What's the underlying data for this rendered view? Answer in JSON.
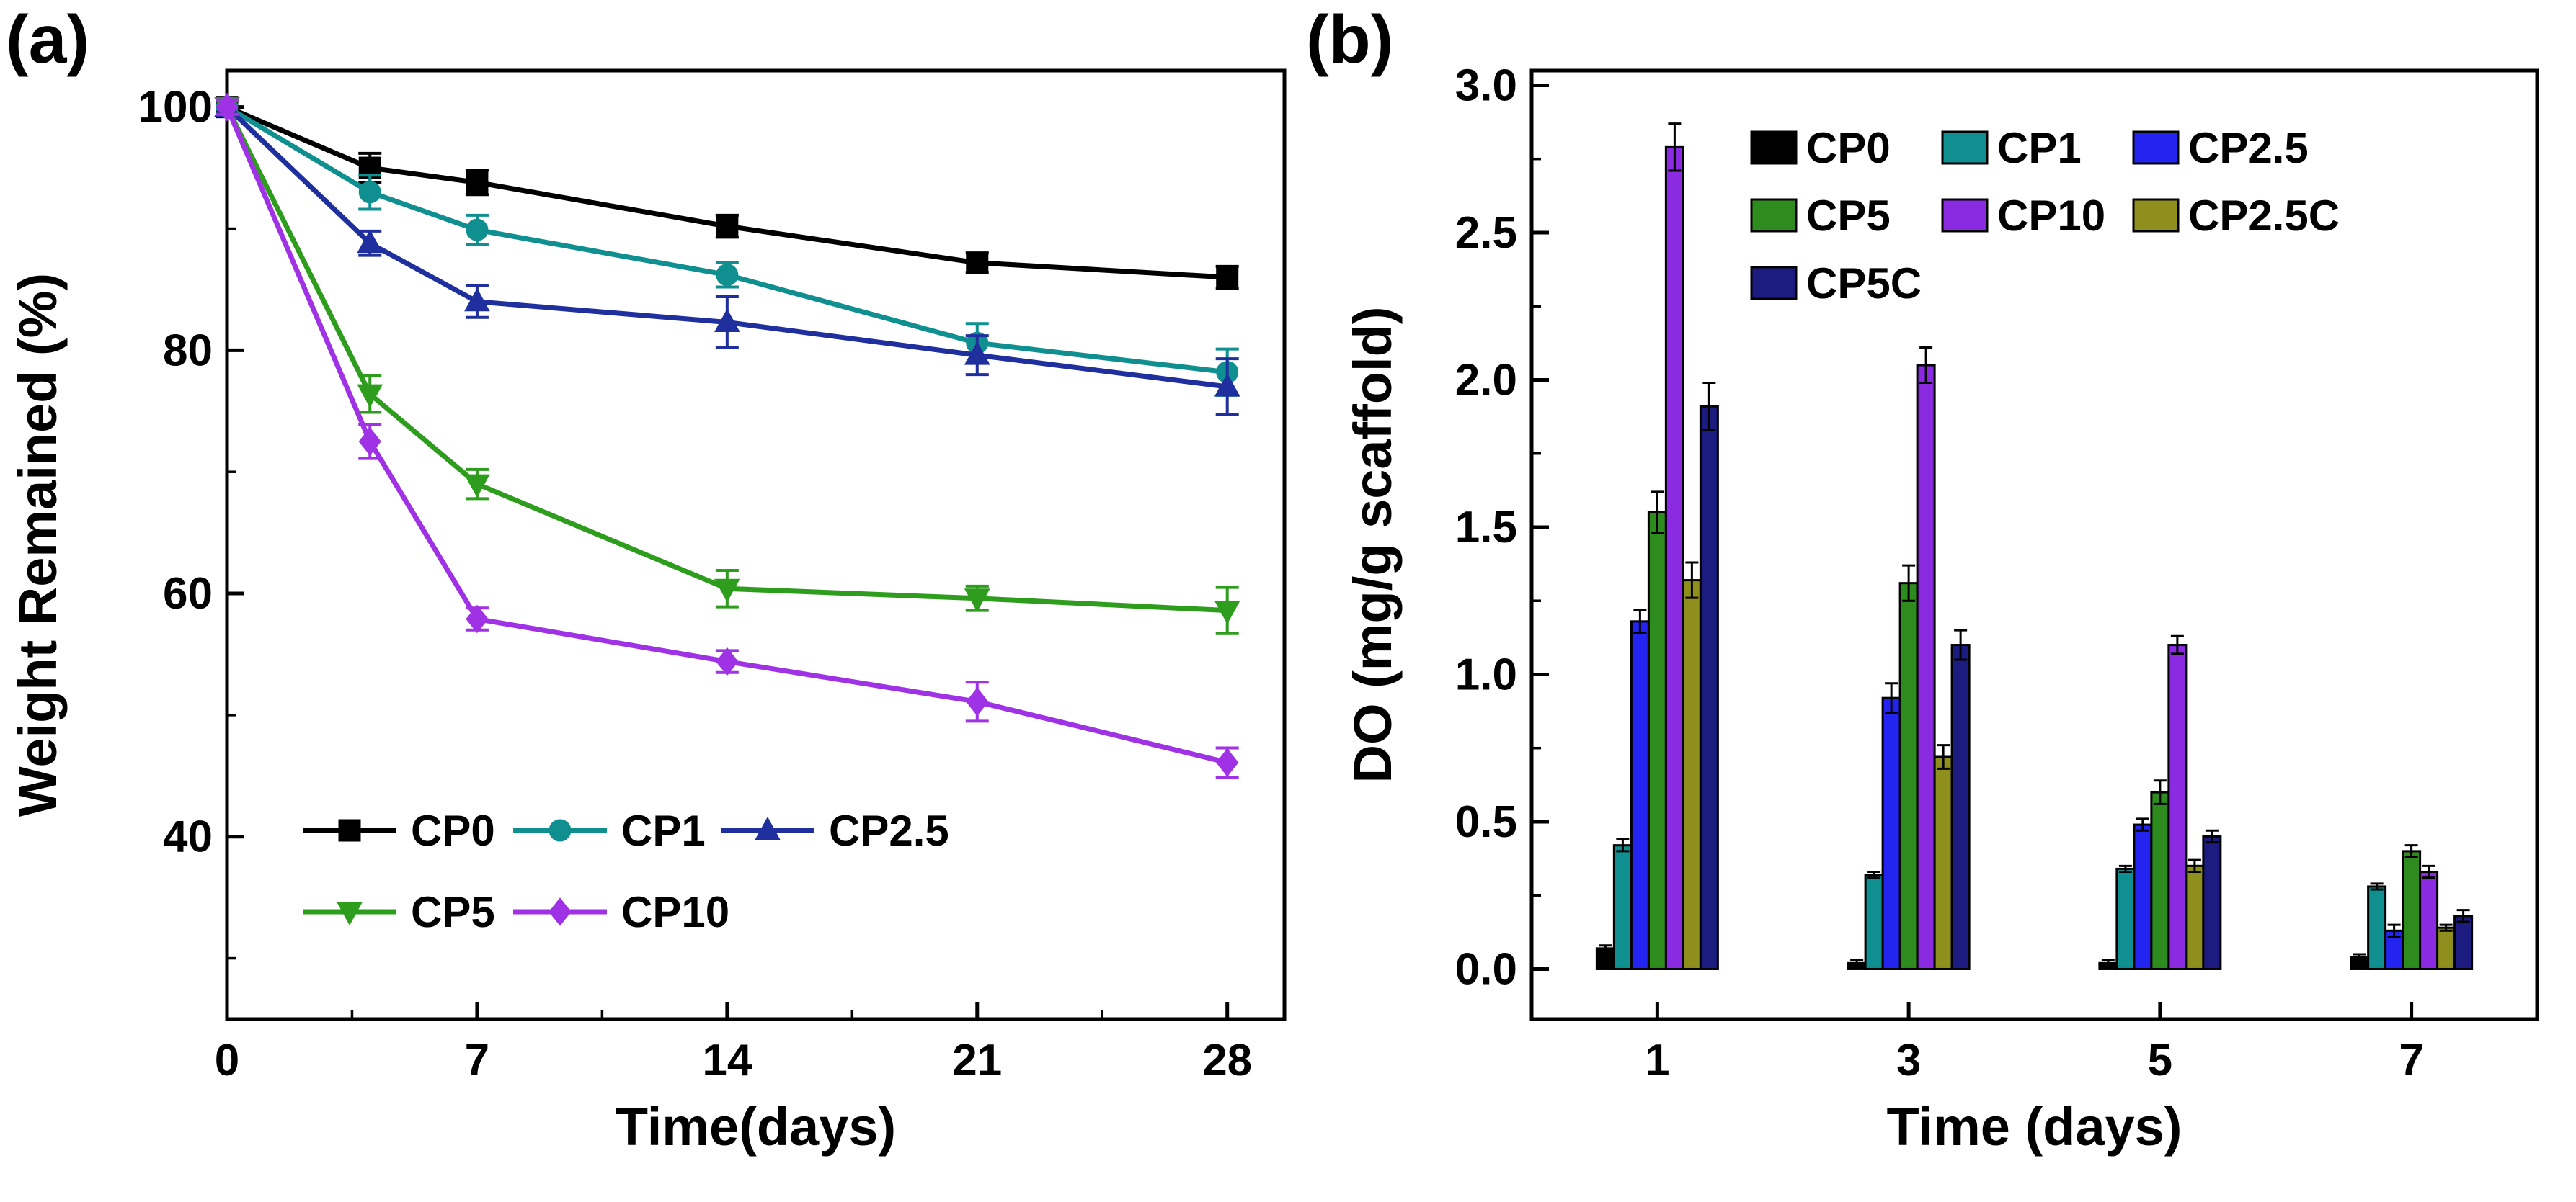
{
  "panel_a_label": "(a)",
  "panel_b_label": "(b)",
  "chart_data": [
    {
      "id": "weight-remained",
      "type": "line",
      "panel": "(a)",
      "title": "",
      "xlabel": "Time(days)",
      "ylabel": "Weight Remained (%)",
      "xlim": [
        0,
        29.6
      ],
      "ylim": [
        25,
        103
      ],
      "xticks": [
        0,
        7,
        14,
        21,
        28
      ],
      "xtick_labels": [
        "0",
        "7",
        "14",
        "21",
        "28"
      ],
      "yticks": [
        40,
        60,
        80,
        100
      ],
      "ytick_labels": [
        "40",
        "60",
        "80",
        "100"
      ],
      "x_minor_ticks": [
        3.5,
        10.5,
        17.5,
        24.5
      ],
      "y_minor_ticks": [
        30,
        50,
        70,
        90
      ],
      "grid": false,
      "legend_position": "inside-bottom-left",
      "x": [
        0,
        4,
        7,
        14,
        21,
        28
      ],
      "series": [
        {
          "name": "CP0",
          "color": "#000000",
          "marker": "square",
          "values": [
            100,
            95.0,
            93.8,
            90.2,
            87.2,
            86.0
          ],
          "errors": [
            0.6,
            1.2,
            1.0,
            0.9,
            0.8,
            0.9
          ]
        },
        {
          "name": "CP1",
          "color": "#0f8f8f",
          "marker": "circle",
          "values": [
            100,
            93.0,
            89.9,
            86.2,
            80.6,
            78.2
          ],
          "errors": [
            0.6,
            1.4,
            1.2,
            1.0,
            1.6,
            1.9
          ]
        },
        {
          "name": "CP2.5",
          "color": "#1f2f9e",
          "marker": "triangle-up",
          "values": [
            100,
            88.8,
            84.0,
            82.3,
            79.6,
            77.0
          ],
          "errors": [
            0.6,
            1.0,
            1.3,
            2.1,
            1.6,
            2.3
          ]
        },
        {
          "name": "CP5",
          "color": "#2e9d1e",
          "marker": "triangle-down",
          "values": [
            100,
            76.4,
            69.0,
            60.4,
            59.6,
            58.6
          ],
          "errors": [
            0.6,
            1.5,
            1.2,
            1.5,
            1.0,
            1.9
          ]
        },
        {
          "name": "CP10",
          "color": "#a032e6",
          "marker": "diamond",
          "values": [
            100,
            72.5,
            57.9,
            54.4,
            51.1,
            46.1
          ],
          "errors": [
            0.6,
            1.4,
            0.9,
            0.9,
            1.6,
            1.2
          ]
        }
      ],
      "legend_rows": [
        [
          "CP0",
          "CP1",
          "CP2.5"
        ],
        [
          "CP5",
          "CP10"
        ]
      ]
    },
    {
      "id": "dissolved-oxygen",
      "type": "bar",
      "panel": "(b)",
      "title": "",
      "xlabel": "Time (days)",
      "ylabel": "DO (mg/g scaffold)",
      "ylim": [
        -0.17,
        3.05
      ],
      "yticks": [
        0,
        0.5,
        1,
        1.5,
        2,
        2.5,
        3
      ],
      "ytick_labels": [
        "0.0",
        "0.5",
        "1.0",
        "1.5",
        "2.0",
        "2.5",
        "3.0"
      ],
      "y_minor_ticks": [
        0.25,
        0.75,
        1.25,
        1.75,
        2.25,
        2.75
      ],
      "grid": false,
      "legend_position": "inside-top",
      "categories": [
        "1",
        "3",
        "5",
        "7"
      ],
      "series": [
        {
          "name": "CP0",
          "color": "#000000",
          "values": [
            0.07,
            0.02,
            0.02,
            0.04
          ],
          "errors": [
            0.01,
            0.01,
            0.01,
            0.01
          ]
        },
        {
          "name": "CP1",
          "color": "#0f8f8f",
          "values": [
            0.42,
            0.32,
            0.34,
            0.28
          ],
          "errors": [
            0.02,
            0.01,
            0.01,
            0.01
          ]
        },
        {
          "name": "CP2.5",
          "color": "#2424f0",
          "values": [
            1.18,
            0.92,
            0.49,
            0.13
          ],
          "errors": [
            0.04,
            0.05,
            0.02,
            0.02
          ]
        },
        {
          "name": "CP5",
          "color": "#2e8b1e",
          "values": [
            1.55,
            1.31,
            0.6,
            0.4
          ],
          "errors": [
            0.07,
            0.06,
            0.04,
            0.02
          ]
        },
        {
          "name": "CP10",
          "color": "#8a2be2",
          "values": [
            2.79,
            2.05,
            1.1,
            0.33
          ],
          "errors": [
            0.08,
            0.06,
            0.03,
            0.02
          ]
        },
        {
          "name": "CP2.5C",
          "color": "#8f8f1e",
          "values": [
            1.32,
            0.72,
            0.35,
            0.14
          ],
          "errors": [
            0.06,
            0.04,
            0.02,
            0.01
          ]
        },
        {
          "name": "CP5C",
          "color": "#1c1c80",
          "values": [
            1.91,
            1.1,
            0.45,
            0.18
          ],
          "errors": [
            0.08,
            0.05,
            0.02,
            0.02
          ]
        }
      ],
      "legend_rows": [
        [
          "CP0",
          "CP1",
          "CP2.5"
        ],
        [
          "CP5",
          "CP10",
          "CP2.5C"
        ],
        [
          "CP5C"
        ]
      ]
    }
  ]
}
